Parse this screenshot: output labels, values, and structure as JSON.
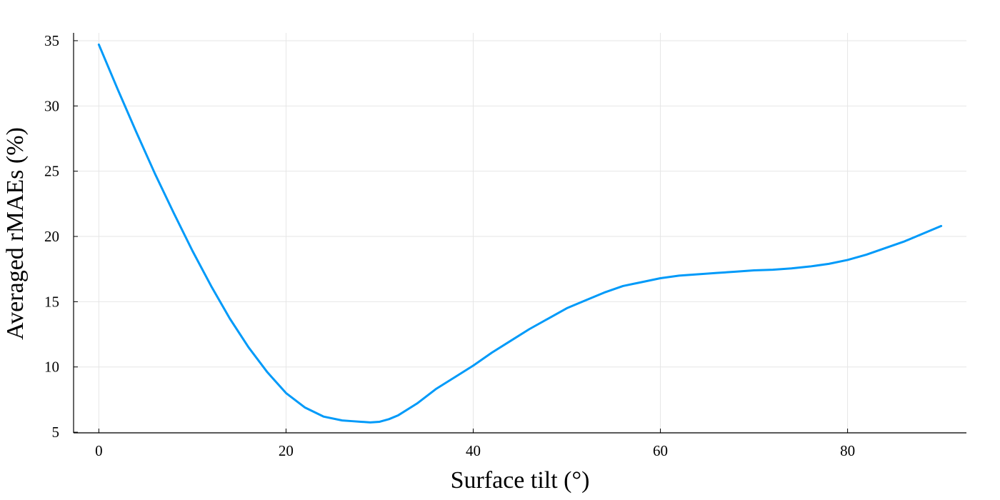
{
  "chart_data": {
    "type": "line",
    "title": "",
    "xlabel": "Surface tilt (°)",
    "ylabel": "Averaged rMAEs (%)",
    "xlim": [
      -2.7,
      92.7
    ],
    "ylim": [
      4.95,
      35.6
    ],
    "xticks": [
      0,
      20,
      40,
      60,
      80
    ],
    "yticks": [
      5,
      10,
      15,
      20,
      25,
      30,
      35
    ],
    "grid": true,
    "legend": "none",
    "line_color": "#009AF9",
    "series": [
      {
        "x": [
          0,
          2,
          4,
          6,
          8,
          10,
          12,
          14,
          16,
          18,
          20,
          22,
          24,
          26,
          27,
          28,
          29,
          30,
          31,
          32,
          34,
          36,
          38,
          40,
          42,
          44,
          46,
          48,
          50,
          52,
          54,
          56,
          58,
          60,
          62,
          64,
          66,
          68,
          70,
          72,
          74,
          76,
          78,
          80,
          82,
          84,
          86,
          88,
          90
        ],
        "y": [
          34.7,
          31.3,
          28.0,
          24.8,
          21.8,
          18.9,
          16.2,
          13.7,
          11.5,
          9.6,
          8.0,
          6.9,
          6.2,
          5.9,
          5.85,
          5.8,
          5.75,
          5.8,
          6.0,
          6.3,
          7.2,
          8.3,
          9.2,
          10.1,
          11.1,
          12.0,
          12.9,
          13.7,
          14.5,
          15.1,
          15.7,
          16.2,
          16.5,
          16.8,
          17.0,
          17.1,
          17.2,
          17.3,
          17.4,
          17.45,
          17.55,
          17.7,
          17.9,
          18.2,
          18.6,
          19.1,
          19.6,
          20.2,
          20.8
        ]
      }
    ]
  }
}
